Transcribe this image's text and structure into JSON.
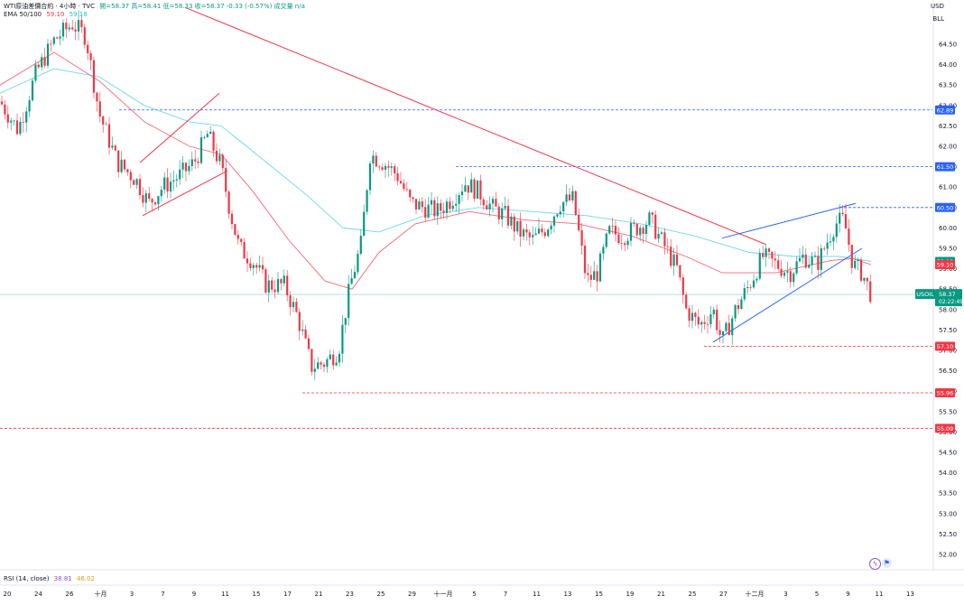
{
  "header": {
    "title": "WTI原油差價合約 · 4小時 · TVC",
    "ohlc": "開=58.37 高=58.41 低=58.33 收=58.37 -0.33 (-0.57%) 成交量 n/a",
    "ema_label": "EMA 50/100",
    "ema_fast_value": "59.10",
    "ema_slow_value": "59.18",
    "currency": "USD",
    "scale_label": "BLL"
  },
  "rsi": {
    "label": "RSI (14, close)",
    "value_a": "38.81",
    "value_b": "46.02"
  },
  "colors": {
    "up": "#089981",
    "down": "#f23645",
    "ema_fast": "#f23645",
    "ema_slow": "#22c3d6",
    "resistance_line": "#f23645",
    "channel_line": "#2962ff",
    "level_blue": "#2962ff",
    "level_red": "#f23645"
  },
  "price_tags": {
    "symbol": "USOIL",
    "last": "58.37",
    "countdown": "02:22:49"
  },
  "chart_data": {
    "type": "candlestick",
    "title": "WTI原油差價合約",
    "timeframe": "4小時",
    "ylim": [
      51.5,
      65.5
    ],
    "y_ticks": [
      "52.00",
      "52.50",
      "53.00",
      "53.50",
      "54.00",
      "54.50",
      "55.00",
      "55.50",
      "56.00",
      "56.50",
      "57.00",
      "57.50",
      "58.00",
      "58.50",
      "59.00",
      "59.50",
      "60.00",
      "60.50",
      "61.00",
      "61.50",
      "62.00",
      "62.50",
      "63.00",
      "63.50",
      "64.00",
      "64.50"
    ],
    "x_ticks": [
      "20",
      "24",
      "26",
      "十月",
      "3",
      "7",
      "9",
      "11",
      "15",
      "17",
      "21",
      "23",
      "25",
      "29",
      "十一月",
      "5",
      "7",
      "11",
      "13",
      "15",
      "19",
      "21",
      "25",
      "27",
      "十二月",
      "3",
      "5",
      "9",
      "11",
      "13"
    ],
    "grid": false,
    "close_path": [
      [
        0,
        63.1
      ],
      [
        20,
        62.4
      ],
      [
        40,
        63.8
      ],
      [
        60,
        64.6
      ],
      [
        80,
        65.0
      ],
      [
        95,
        64.7
      ],
      [
        110,
        62.8
      ],
      [
        130,
        61.6
      ],
      [
        150,
        61.2
      ],
      [
        165,
        60.6
      ],
      [
        180,
        61.0
      ],
      [
        200,
        61.3
      ],
      [
        215,
        61.6
      ],
      [
        230,
        62.3
      ],
      [
        245,
        61.5
      ],
      [
        255,
        60.4
      ],
      [
        265,
        59.5
      ],
      [
        280,
        59.2
      ],
      [
        295,
        58.6
      ],
      [
        315,
        58.6
      ],
      [
        330,
        57.8
      ],
      [
        345,
        56.6
      ],
      [
        360,
        56.7
      ],
      [
        375,
        57.0
      ],
      [
        388,
        58.6
      ],
      [
        400,
        59.6
      ],
      [
        410,
        61.8
      ],
      [
        425,
        61.6
      ],
      [
        440,
        61.3
      ],
      [
        455,
        60.6
      ],
      [
        470,
        60.5
      ],
      [
        485,
        60.4
      ],
      [
        500,
        60.7
      ],
      [
        515,
        61.1
      ],
      [
        530,
        60.9
      ],
      [
        545,
        60.5
      ],
      [
        560,
        60.3
      ],
      [
        575,
        59.9
      ],
      [
        590,
        59.7
      ],
      [
        605,
        60.0
      ],
      [
        620,
        60.6
      ],
      [
        635,
        60.7
      ],
      [
        650,
        58.7
      ],
      [
        662,
        58.9
      ],
      [
        675,
        59.9
      ],
      [
        690,
        59.8
      ],
      [
        705,
        60.0
      ],
      [
        720,
        60.2
      ],
      [
        735,
        59.6
      ],
      [
        750,
        59.0
      ],
      [
        760,
        58.0
      ],
      [
        775,
        57.6
      ],
      [
        790,
        58.0
      ],
      [
        800,
        57.2
      ],
      [
        815,
        58.0
      ],
      [
        830,
        58.6
      ],
      [
        845,
        59.3
      ],
      [
        860,
        59.1
      ],
      [
        875,
        58.9
      ],
      [
        890,
        59.3
      ],
      [
        905,
        59.1
      ],
      [
        915,
        59.6
      ],
      [
        925,
        60.1
      ],
      [
        935,
        60.2
      ],
      [
        945,
        59.1
      ],
      [
        955,
        58.9
      ],
      [
        965,
        58.37
      ]
    ],
    "series": [
      {
        "name": "EMA 50",
        "points": [
          [
            0,
            63.5
          ],
          [
            60,
            64.3
          ],
          [
            110,
            63.6
          ],
          [
            160,
            62.6
          ],
          [
            210,
            62.0
          ],
          [
            245,
            61.8
          ],
          [
            280,
            60.9
          ],
          [
            320,
            59.7
          ],
          [
            360,
            58.7
          ],
          [
            390,
            58.5
          ],
          [
            420,
            59.4
          ],
          [
            460,
            60.1
          ],
          [
            520,
            60.4
          ],
          [
            580,
            60.2
          ],
          [
            640,
            60.1
          ],
          [
            700,
            59.8
          ],
          [
            760,
            59.3
          ],
          [
            800,
            58.9
          ],
          [
            860,
            58.9
          ],
          [
            920,
            59.2
          ],
          [
            945,
            59.25
          ],
          [
            965,
            59.1
          ]
        ]
      },
      {
        "name": "EMA 100",
        "points": [
          [
            0,
            63.3
          ],
          [
            60,
            63.9
          ],
          [
            110,
            63.7
          ],
          [
            160,
            63.0
          ],
          [
            210,
            62.6
          ],
          [
            245,
            62.5
          ],
          [
            290,
            61.7
          ],
          [
            340,
            60.8
          ],
          [
            380,
            60.0
          ],
          [
            420,
            59.9
          ],
          [
            470,
            60.3
          ],
          [
            530,
            60.5
          ],
          [
            590,
            60.4
          ],
          [
            650,
            60.3
          ],
          [
            710,
            60.1
          ],
          [
            770,
            59.8
          ],
          [
            830,
            59.4
          ],
          [
            880,
            59.3
          ],
          [
            930,
            59.3
          ],
          [
            965,
            59.18
          ]
        ]
      }
    ],
    "levels": [
      {
        "value": 62.89,
        "label": "62.89",
        "color": "blue",
        "x_start": 132
      },
      {
        "value": 61.5,
        "label": "61.50",
        "color": "blue",
        "x_start": 505
      },
      {
        "value": 60.5,
        "label": "60.50",
        "color": "blue",
        "x_start": 930
      },
      {
        "value": 57.1,
        "label": "57.10",
        "color": "red",
        "x_start": 780
      },
      {
        "value": 55.96,
        "label": "55.96",
        "color": "red",
        "x_start": 335
      },
      {
        "value": 55.09,
        "label": "55.09",
        "color": "red",
        "x_start": 0
      }
    ],
    "trendlines": [
      {
        "name": "resistance",
        "color": "red",
        "from": [
          205,
          65.4
        ],
        "to": [
          848,
          59.6
        ]
      },
      {
        "name": "channel-lower",
        "color": "red",
        "from": [
          158,
          60.3
        ],
        "to": [
          252,
          61.4
        ]
      },
      {
        "name": "channel-upper",
        "color": "red",
        "from": [
          155,
          61.6
        ],
        "to": [
          243,
          63.3
        ]
      },
      {
        "name": "wedge-upper",
        "color": "blue",
        "from": [
          800,
          59.75
        ],
        "to": [
          948,
          60.6
        ]
      },
      {
        "name": "wedge-lower",
        "color": "blue",
        "from": [
          790,
          57.2
        ],
        "to": [
          955,
          59.5
        ]
      }
    ],
    "right_axis_tags": [
      {
        "label": "59.18",
        "value": 59.18,
        "color": "teal"
      },
      {
        "label": "59.10",
        "value": 59.1,
        "color": "red"
      },
      {
        "label": "58.27",
        "value": 58.27,
        "color": "red"
      }
    ]
  }
}
